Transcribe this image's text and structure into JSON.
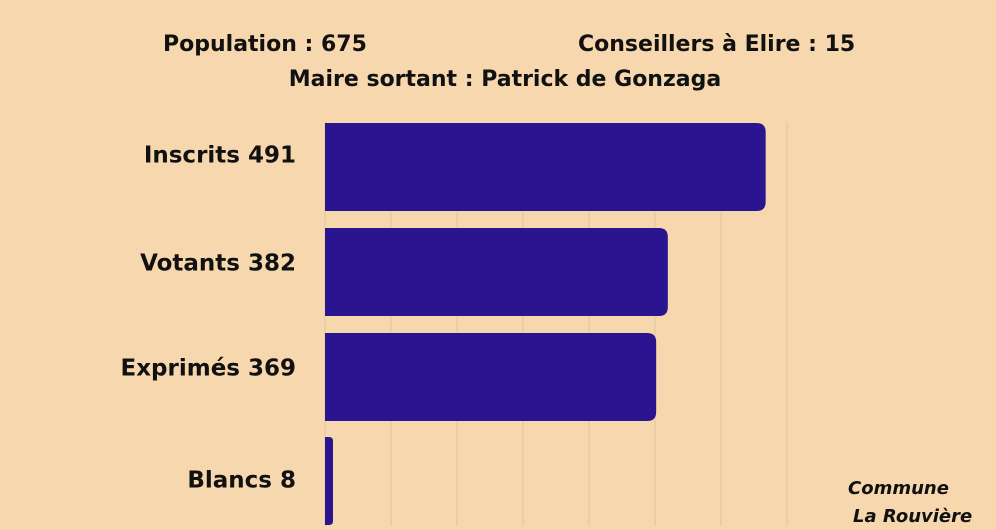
{
  "header": {
    "population": "Population : 675",
    "conseillers": "Conseillers à Elire : 15",
    "maire": "Maire sortant : Patrick de Gonzaga"
  },
  "footer": {
    "line1": "Commune",
    "line2": "La Rouvière"
  },
  "colors": {
    "background": "#f7d7ae",
    "bar": "#2a1490",
    "grid": "#e3c8a2"
  },
  "chart_data": {
    "type": "bar",
    "orientation": "horizontal",
    "categories": [
      "Inscrits 491",
      "Votants 382",
      "Exprimés 369",
      "Blancs 8"
    ],
    "values": [
      491,
      382,
      369,
      8
    ],
    "xlim": [
      0,
      500
    ],
    "grid": true,
    "legend": "none"
  }
}
